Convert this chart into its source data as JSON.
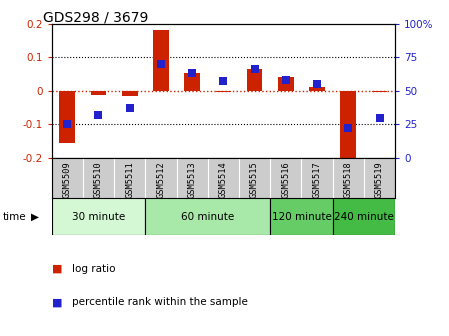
{
  "title": "GDS298 / 3679",
  "samples": [
    "GSM5509",
    "GSM5510",
    "GSM5511",
    "GSM5512",
    "GSM5513",
    "GSM5514",
    "GSM5515",
    "GSM5516",
    "GSM5517",
    "GSM5518",
    "GSM5519"
  ],
  "log_ratio": [
    -0.155,
    -0.012,
    -0.016,
    0.18,
    0.052,
    -0.005,
    0.065,
    0.04,
    0.012,
    -0.213,
    -0.005
  ],
  "percentile": [
    25,
    32,
    37,
    70,
    63,
    57,
    66,
    58,
    55,
    22,
    30
  ],
  "ylim_left": [
    -0.2,
    0.2
  ],
  "ylim_right": [
    0,
    100
  ],
  "yticks_left": [
    -0.2,
    -0.1,
    0.0,
    0.1,
    0.2
  ],
  "yticks_right": [
    0,
    25,
    50,
    75,
    100
  ],
  "ytick_labels_right": [
    "0",
    "25",
    "50",
    "75",
    "100%"
  ],
  "hlines": [
    0.1,
    -0.1
  ],
  "bar_color": "#cc2200",
  "dot_color": "#2222cc",
  "zero_line_color": "#cc2200",
  "groups": [
    {
      "label": "30 minute",
      "start": 0,
      "end": 3,
      "color": "#d4f7d4"
    },
    {
      "label": "60 minute",
      "start": 3,
      "end": 7,
      "color": "#a8e8a8"
    },
    {
      "label": "120 minute",
      "start": 7,
      "end": 9,
      "color": "#66cc66"
    },
    {
      "label": "240 minute",
      "start": 9,
      "end": 11,
      "color": "#44bb44"
    }
  ],
  "legend_bar_label": "log ratio",
  "legend_dot_label": "percentile rank within the sample",
  "bar_width": 0.5,
  "dot_size": 28,
  "tick_bg_color": "#cccccc"
}
